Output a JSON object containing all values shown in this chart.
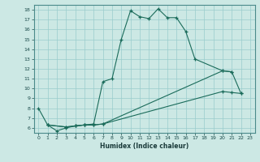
{
  "xlabel": "Humidex (Indice chaleur)",
  "bg_color": "#cce8e4",
  "grid_color": "#99cccc",
  "line_color": "#1a6b5a",
  "xlim": [
    -0.5,
    23.5
  ],
  "ylim": [
    5.5,
    18.5
  ],
  "xticks": [
    0,
    1,
    2,
    3,
    4,
    5,
    6,
    7,
    8,
    9,
    10,
    11,
    12,
    13,
    14,
    15,
    16,
    17,
    18,
    19,
    20,
    21,
    22,
    23
  ],
  "yticks": [
    6,
    7,
    8,
    9,
    10,
    11,
    12,
    13,
    14,
    15,
    16,
    17,
    18
  ],
  "line1_x": [
    0,
    1,
    2,
    3,
    4,
    5,
    6,
    7,
    8,
    9,
    10,
    11,
    12,
    13,
    14,
    15,
    16,
    17,
    20,
    21
  ],
  "line1_y": [
    8.0,
    6.3,
    5.7,
    6.0,
    6.2,
    6.3,
    6.4,
    10.7,
    11.0,
    15.0,
    17.9,
    17.3,
    17.1,
    18.1,
    17.2,
    17.2,
    15.8,
    13.0,
    11.8,
    11.7
  ],
  "line2_x": [
    1,
    3,
    4,
    5,
    6,
    7,
    20,
    21,
    22
  ],
  "line2_y": [
    6.3,
    6.1,
    6.2,
    6.3,
    6.3,
    6.4,
    11.8,
    11.7,
    9.5
  ],
  "line3_x": [
    1,
    3,
    4,
    5,
    6,
    7,
    20,
    21,
    22
  ],
  "line3_y": [
    6.3,
    6.1,
    6.2,
    6.3,
    6.3,
    6.4,
    9.7,
    9.6,
    9.5
  ]
}
